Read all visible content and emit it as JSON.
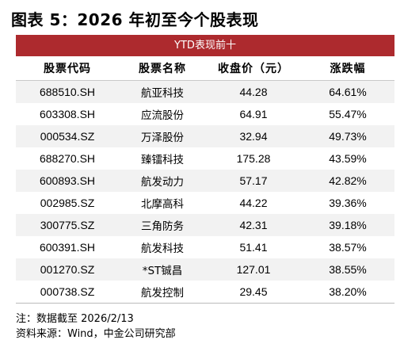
{
  "title": "图表 5：2026 年初至今个股表现",
  "table": {
    "banner": "YTD表现前十",
    "headers": [
      "股票代码",
      "股票名称",
      "收盘价（元）",
      "涨跌幅"
    ],
    "rows": [
      {
        "code": "688510.SH",
        "name": "航亚科技",
        "close": "44.28",
        "change": "64.61%"
      },
      {
        "code": "603308.SH",
        "name": "应流股份",
        "close": "64.91",
        "change": "55.47%"
      },
      {
        "code": "000534.SZ",
        "name": "万泽股份",
        "close": "32.94",
        "change": "49.73%"
      },
      {
        "code": "688270.SH",
        "name": "臻镭科技",
        "close": "175.28",
        "change": "43.59%"
      },
      {
        "code": "600893.SH",
        "name": "航发动力",
        "close": "57.17",
        "change": "42.82%"
      },
      {
        "code": "002985.SZ",
        "name": "北摩高科",
        "close": "44.22",
        "change": "39.36%"
      },
      {
        "code": "300775.SZ",
        "name": "三角防务",
        "close": "42.31",
        "change": "39.18%"
      },
      {
        "code": "600391.SH",
        "name": "航发科技",
        "close": "51.41",
        "change": "38.57%"
      },
      {
        "code": "001270.SZ",
        "name": "*ST铖昌",
        "close": "127.01",
        "change": "38.55%"
      },
      {
        "code": "000738.SZ",
        "name": "航发控制",
        "close": "29.45",
        "change": "38.20%"
      }
    ]
  },
  "notes": {
    "note": "注：数据截至 2026/2/13",
    "source": "资料来源：Wind，中金公司研究部"
  }
}
